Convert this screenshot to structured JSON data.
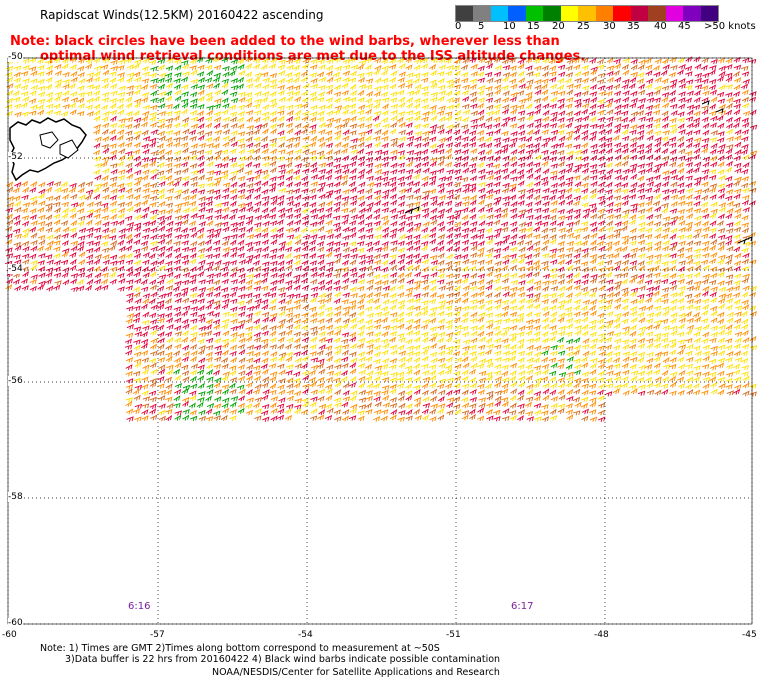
{
  "header": {
    "title": "Rapidscat Winds(12.5KM) 20160422 ascending",
    "note_line1": "Note: black circles have been added to the wind barbs, wherever less than",
    "note_line2": "optimal wind retrieval conditions are met due to the ISS altitude changes."
  },
  "legend": {
    "labels": [
      "0",
      "5",
      "10",
      "15",
      "20",
      "25",
      "30",
      "35",
      "40",
      "45",
      ">50 knots"
    ],
    "colors": [
      "#404040",
      "#808080",
      "#00bfff",
      "#0060ff",
      "#00c000",
      "#008000",
      "#ffff00",
      "#ffc000",
      "#ff8000",
      "#ff0000",
      "#c00040",
      "#a04020",
      "#e000e0",
      "#8000c0",
      "#400080"
    ]
  },
  "map": {
    "lat_labels": [
      "-50",
      "-52",
      "-54",
      "-56",
      "-58",
      "-60"
    ],
    "lon_labels": [
      "-60",
      "-57",
      "-54",
      "-51",
      "-48",
      "-45"
    ],
    "time_labels": [
      "6:16",
      "6:17"
    ],
    "barb_colors": {
      "yellow": "#ffe000",
      "orange": "#ff8c00",
      "dark_orange": "#d2691e",
      "red": "#e0003a",
      "green": "#00a000",
      "black": "#000000"
    },
    "land": "Falkland Islands (outline)"
  },
  "footer": {
    "line1": "Note: 1) Times are GMT 2)Times along bottom correspond to measurement at ~50S",
    "line2": "3)Data buffer is 22 hrs from 20160422 4) Black wind barbs indicate possible contamination",
    "line3": "NOAA/NESDIS/Center for Satellite Applications and Research"
  }
}
